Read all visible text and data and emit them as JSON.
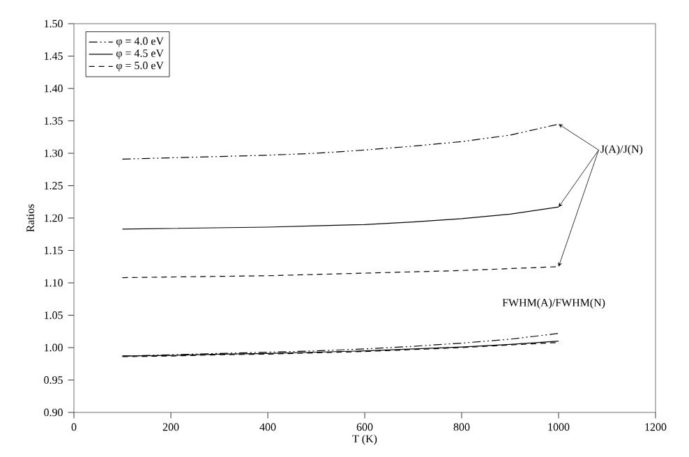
{
  "chart_data": {
    "type": "line",
    "x": [
      100,
      200,
      300,
      400,
      500,
      600,
      700,
      800,
      900,
      1000
    ],
    "series": [
      {
        "name": "φ = 4.0 eV",
        "color": "#000000",
        "line_style": "dashdotdot",
        "values": [
          1.291,
          1.293,
          1.295,
          1.297,
          1.3,
          1.305,
          1.311,
          1.318,
          1.328,
          1.345
        ]
      },
      {
        "name": "φ = 4.5 eV",
        "color": "#000000",
        "line_style": "solid",
        "values": [
          1.183,
          1.184,
          1.185,
          1.186,
          1.188,
          1.19,
          1.194,
          1.199,
          1.206,
          1.217
        ]
      },
      {
        "name": "φ = 5.0 eV",
        "color": "#000000",
        "line_style": "dashed",
        "values": [
          1.108,
          1.109,
          1.11,
          1.111,
          1.113,
          1.115,
          1.117,
          1.119,
          1.122,
          1.125
        ]
      },
      {
        "color": "#000000",
        "line_style": "dashdotdot",
        "values": [
          0.987,
          0.989,
          0.991,
          0.993,
          0.995,
          0.998,
          1.002,
          1.007,
          1.013,
          1.022
        ]
      },
      {
        "color": "#000000",
        "line_style": "solid",
        "values": [
          0.987,
          0.988,
          0.99,
          0.991,
          0.993,
          0.995,
          0.998,
          1.001,
          1.005,
          1.01
        ]
      },
      {
        "color": "#000000",
        "line_style": "dashed",
        "values": [
          0.986,
          0.987,
          0.989,
          0.99,
          0.992,
          0.994,
          0.997,
          1.0,
          1.004,
          1.008
        ]
      }
    ],
    "xlabel": "T (K)",
    "ylabel": "Ratios",
    "xlim": [
      0,
      1200
    ],
    "xticks": [
      0,
      200,
      400,
      600,
      800,
      1000,
      1200
    ],
    "ylim": [
      0.9,
      1.5
    ],
    "yticks": [
      {
        "value": 0.9,
        "label": "0.90"
      },
      {
        "value": 0.95,
        "label": "0.95"
      },
      {
        "value": 1.0,
        "label": "1.00"
      },
      {
        "value": 1.05,
        "label": "1.05"
      },
      {
        "value": 1.1,
        "label": "1.10"
      },
      {
        "value": 1.15,
        "label": "1.15"
      },
      {
        "value": 1.2,
        "label": "1.20"
      },
      {
        "value": 1.25,
        "label": "1.25"
      },
      {
        "value": 1.3,
        "label": "1.30"
      },
      {
        "value": 1.35,
        "label": "1.35"
      },
      {
        "value": 1.4,
        "label": "1.40"
      },
      {
        "value": 1.45,
        "label": "1.45"
      },
      {
        "value": 1.5,
        "label": "1.50"
      }
    ],
    "annotations": [
      {
        "text": "J(A)/J(N)",
        "x": 1000,
        "y": 1.345
      },
      "FWHM(A)/FWHM(N)"
    ],
    "legend": "top left",
    "grid": false
  }
}
